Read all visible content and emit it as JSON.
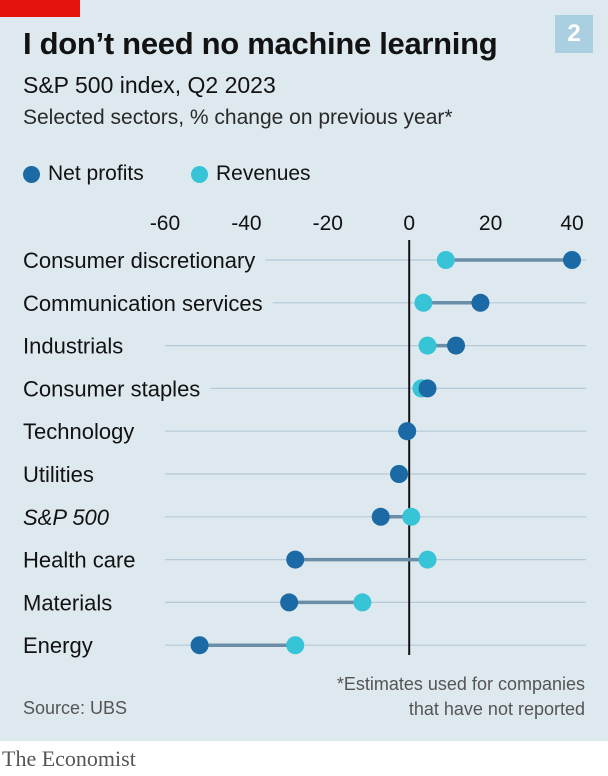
{
  "header": {
    "title": "I don’t need no machine learning",
    "badge": "2",
    "subtitle": "S&P 500 index, Q2 2023",
    "description": "Selected sectors, % change on previous year*"
  },
  "footer": {
    "footnote_line1": "*Estimates used for companies",
    "footnote_line2": "that have not reported",
    "source": "Source: UBS",
    "brand": "The Economist"
  },
  "colors": {
    "net_profits": "#1b6aa5",
    "revenues": "#36c4d6",
    "connector": "#6a8ea8",
    "zero_line": "#121212",
    "gridline": "#b5c9d6",
    "brand_red": "#e3120b"
  },
  "chart_data": {
    "type": "dot",
    "title": "I don’t need no machine learning",
    "subtitle": "S&P 500 index, Q2 2023",
    "xlim": [
      -60,
      40
    ],
    "xticks": [
      -60,
      -40,
      -20,
      0,
      20,
      40
    ],
    "grid": true,
    "legend_position": "top-left",
    "categories": [
      "Consumer discretionary",
      "Communication services",
      "Industrials",
      "Consumer staples",
      "Technology",
      "Utilities",
      "S&P 500",
      "Health care",
      "Materials",
      "Energy"
    ],
    "italic_categories": [
      "S&P 500"
    ],
    "series": [
      {
        "name": "Net profits",
        "values": [
          40,
          17.5,
          11.5,
          4.5,
          -0.5,
          -2.5,
          -7,
          -28,
          -29.5,
          -51.5
        ]
      },
      {
        "name": "Revenues",
        "values": [
          9,
          3.5,
          4.5,
          3,
          -0.5,
          -2.5,
          0.5,
          4.5,
          -11.5,
          -28
        ]
      }
    ]
  }
}
